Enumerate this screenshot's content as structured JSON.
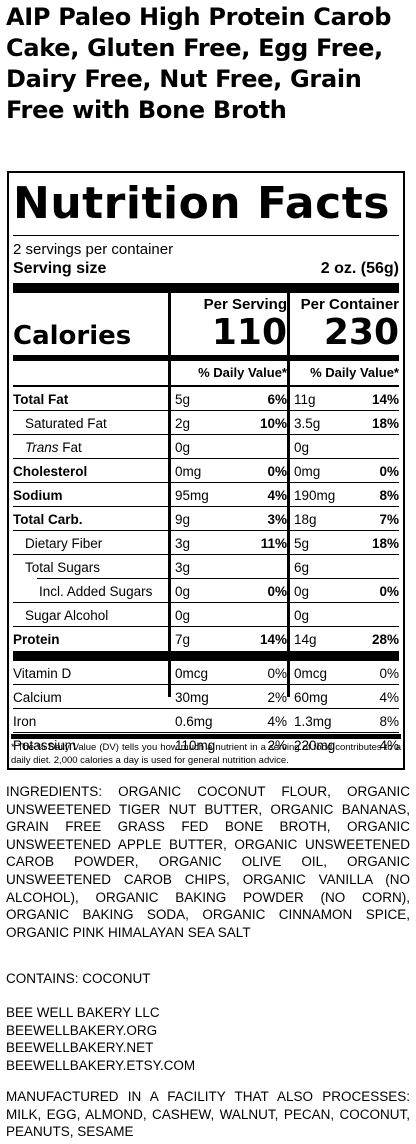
{
  "product_title": "AIP Paleo High Protein Carob Cake, Gluten Free, Egg Free, Dairy Free, Nut Free, Grain Free with Bone Broth",
  "label": {
    "heading": "Nutrition Facts",
    "servings_per_container": "2 servings per container",
    "serving_size_label": "Serving size",
    "serving_size_value": "2 oz. (56g)",
    "col1_heading": "Per Serving",
    "col2_heading": "Per Container",
    "calories_label": "Calories",
    "calories_serving": "110",
    "calories_container": "230",
    "dv_heading": "% Daily Value*",
    "nutrients": [
      {
        "name": "Total Fat",
        "a1": "5g",
        "p1": "6%",
        "a2": "11g",
        "p2": "14%"
      },
      {
        "name": "Saturated Fat",
        "a1": "2g",
        "p1": "10%",
        "a2": "3.5g",
        "p2": "18%"
      },
      {
        "name": "Trans",
        "name_suffix": " Fat",
        "a1": "0g",
        "p1": "",
        "a2": "0g",
        "p2": ""
      },
      {
        "name": "Cholesterol",
        "a1": "0mg",
        "p1": "0%",
        "a2": "0mg",
        "p2": "0%"
      },
      {
        "name": "Sodium",
        "a1": "95mg",
        "p1": "4%",
        "a2": "190mg",
        "p2": "8%"
      },
      {
        "name": "Total Carb.",
        "a1": "9g",
        "p1": "3%",
        "a2": "18g",
        "p2": "7%"
      },
      {
        "name": "Dietary Fiber",
        "a1": "3g",
        "p1": "11%",
        "a2": "5g",
        "p2": "18%"
      },
      {
        "name": "Total Sugars",
        "a1": "3g",
        "p1": "",
        "a2": "6g",
        "p2": ""
      },
      {
        "name": "Incl. Added Sugars",
        "a1": "0g",
        "p1": "0%",
        "a2": "0g",
        "p2": "0%"
      },
      {
        "name": "Sugar Alcohol",
        "a1": "0g",
        "p1": "",
        "a2": "0g",
        "p2": ""
      },
      {
        "name": "Protein",
        "a1": "7g",
        "p1": "14%",
        "a2": "14g",
        "p2": "28%"
      }
    ],
    "vitamins": [
      {
        "name": "Vitamin D",
        "a1": "0mcg",
        "p1": "0%",
        "a2": "0mcg",
        "p2": "0%"
      },
      {
        "name": "Calcium",
        "a1": "30mg",
        "p1": "2%",
        "a2": "60mg",
        "p2": "4%"
      },
      {
        "name": "Iron",
        "a1": "0.6mg",
        "p1": "4%",
        "a2": "1.3mg",
        "p2": "8%"
      },
      {
        "name": "Potassium",
        "a1": "110mg",
        "p1": "2%",
        "a2": "220mg",
        "p2": "4%"
      }
    ],
    "footnote": "* The % Daily Value (DV) tells you how much a nutrient in a serving of food contributes to a daily diet. 2,000 calories a day is used for general nutrition advice."
  },
  "ingredients": "INGREDIENTS: ORGANIC COCONUT FLOUR, ORGANIC UNSWEETENED TIGER NUT BUTTER, ORGANIC BANANAS, GRAIN FREE GRASS FED BONE BROTH, ORGANIC UNSWEETENED APPLE BUTTER, ORGANIC UNSWEETENED CAROB POWDER, ORGANIC OLIVE OIL, ORGANIC UNSWEETENED CAROB CHIPS, ORGANIC VANILLA (NO ALCOHOL), ORGANIC BAKING POWDER (NO CORN), ORGANIC BAKING SODA, ORGANIC CINNAMON SPICE, ORGANIC PINK HIMALAYAN SEA SALT",
  "contains": "CONTAINS: COCONUT",
  "company": {
    "name": "BEE WELL BAKERY LLC",
    "website": "BEEWELLBAKERY.ORG",
    "website2": "BEEWELLBAKERY.NET",
    "shop": "BEEWELLBAKERY.ETSY.COM"
  },
  "facility": "MANUFACTURED IN A FACILITY THAT ALSO PROCESSES: MILK, EGG, ALMOND, CASHEW, WALNUT, PECAN, COCONUT, PEANUTS, SESAME"
}
